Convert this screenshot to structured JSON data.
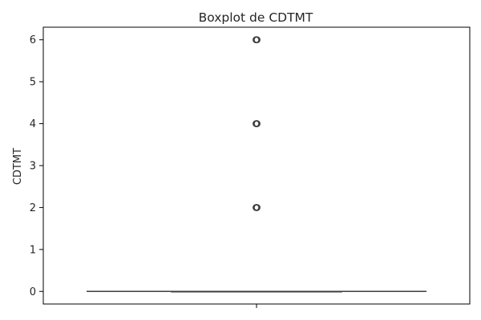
{
  "chart_data": {
    "type": "box",
    "title": "Boxplot de CDTMT",
    "xlabel": "",
    "ylabel": "CDTMT",
    "ylim": [
      -0.3,
      6.3
    ],
    "yticks": [
      0,
      1,
      2,
      3,
      4,
      5,
      6
    ],
    "box": {
      "whisker_low": 0,
      "q1": 0,
      "median": 0,
      "q3": 0,
      "whisker_high": 0,
      "outliers": [
        2,
        4,
        6
      ]
    },
    "grid": false,
    "legend": "none",
    "colors": {
      "box_line": "#3d3d3d",
      "outlier_edge": "#3d3d3d",
      "axes": "#000000",
      "text": "#262626"
    }
  }
}
